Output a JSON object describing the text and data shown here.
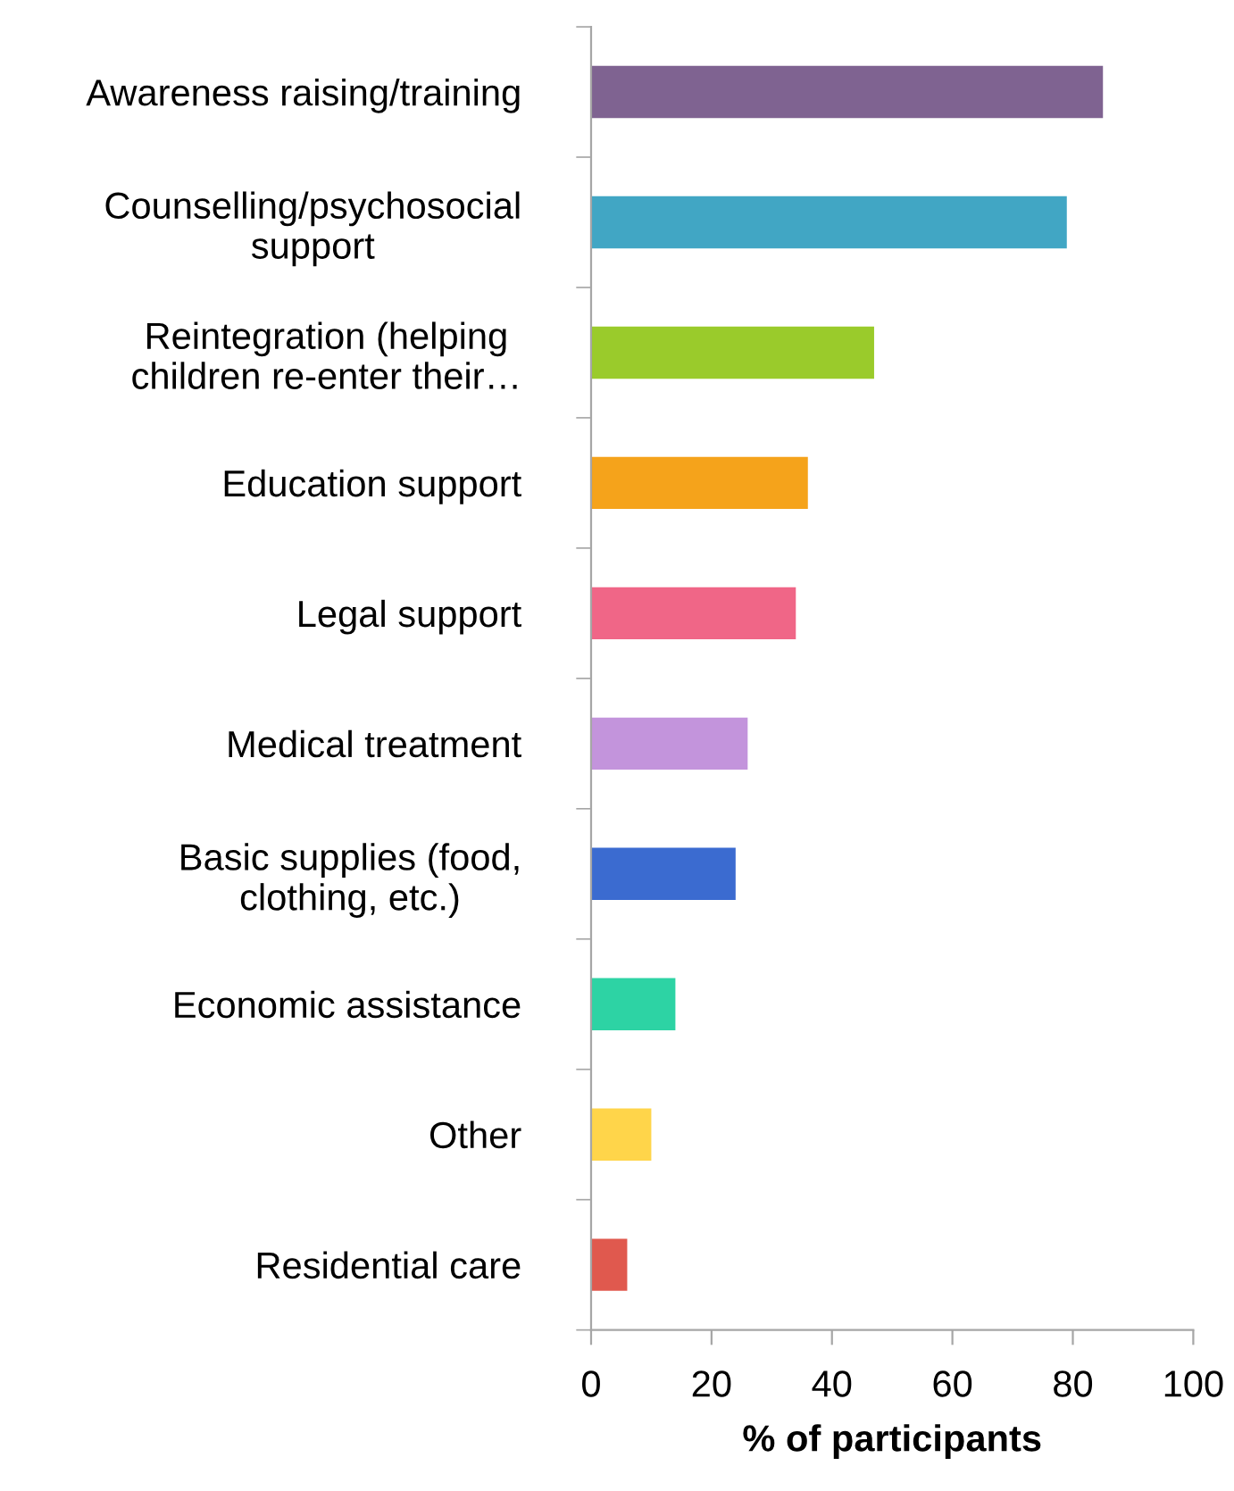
{
  "chart_data": {
    "type": "bar",
    "orientation": "horizontal",
    "categories": [
      "Awareness raising/training",
      "Counselling/psychosocial\nsupport",
      "Reintegration (helping\nchildren re-enter their…",
      "Education support",
      "Legal support",
      "Medical treatment",
      "Basic supplies (food,\nclothing, etc.)",
      "Economic assistance",
      "Other",
      "Residential care"
    ],
    "values": [
      85,
      79,
      47,
      36,
      34,
      26,
      24,
      14,
      10,
      6
    ],
    "colors": [
      "#7f6391",
      "#41a6c4",
      "#9acb2b",
      "#f5a31b",
      "#f06687",
      "#c394dc",
      "#3b6bd0",
      "#2dd3a4",
      "#ffd54a",
      "#e0594e"
    ],
    "xlabel": "% of participants",
    "xlim": [
      0,
      100
    ],
    "xticks": [
      0,
      20,
      40,
      60,
      80,
      100
    ],
    "grid": false,
    "legend": false
  }
}
